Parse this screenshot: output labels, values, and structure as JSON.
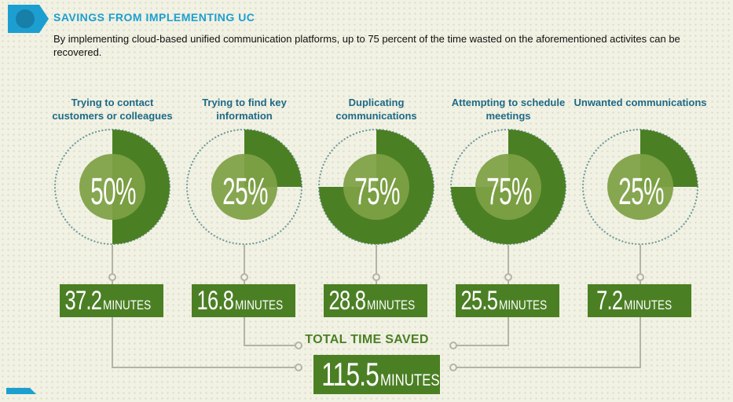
{
  "header": {
    "title": "SAVINGS FROM IMPLEMENTING UC",
    "description": "By implementing cloud-based unified communication platforms, up to 75 percent of the time wasted on the aforementioned activites can be recovered.",
    "icon": "section-badge-icon"
  },
  "colors": {
    "accent_blue": "#1c9fd0",
    "green_dark": "#4b7f24",
    "green_light": "#7ea045",
    "category_text": "#1d6a86",
    "connector": "#b3b3a7"
  },
  "chart_data": {
    "type": "pie",
    "items": [
      {
        "label": "Trying to contact customers or colleagues",
        "percent_label": "50%",
        "value": 50,
        "minutes": "37.2",
        "unit": "MINUTES"
      },
      {
        "label": "Trying to find key information",
        "percent_label": "25%",
        "value": 25,
        "minutes": "16.8",
        "unit": "MINUTES"
      },
      {
        "label": "Duplicating communications",
        "percent_label": "75%",
        "value": 75,
        "minutes": "28.8",
        "unit": "MINUTES"
      },
      {
        "label": "Attempting to schedule meetings",
        "percent_label": "75%",
        "value": 75,
        "minutes": "25.5",
        "unit": "MINUTES"
      },
      {
        "label": "Unwanted communications",
        "percent_label": "25%",
        "value": 25,
        "minutes": "7.2",
        "unit": "MINUTES"
      }
    ],
    "total": {
      "label": "TOTAL TIME SAVED",
      "minutes": "115.5",
      "unit": "MINUTES"
    }
  }
}
